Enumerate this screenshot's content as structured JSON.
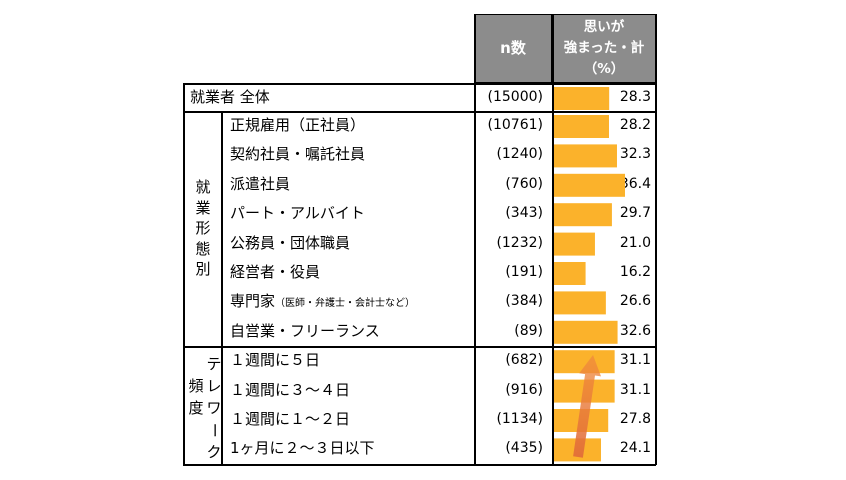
{
  "header": {
    "n_label": "n数",
    "value_label_lines": [
      "思いが",
      "強まった・計",
      "（%）"
    ]
  },
  "groups": {
    "workstyle": [
      "就",
      "業",
      "形",
      "態",
      "別"
    ],
    "frequency_kanji": [
      "頻",
      "度"
    ],
    "frequency_kana": [
      "テ",
      "レ",
      "ワ",
      "ー",
      "ク"
    ]
  },
  "colors": {
    "bar": "#FBB22B",
    "header_bg": "#8C8C8C",
    "arrow": "#E8743B"
  },
  "chart_data": {
    "type": "bar",
    "orientation": "horizontal",
    "xlim": [
      0,
      40
    ],
    "categories": [
      "就業者 全体",
      "正規雇用（正社員）",
      "契約社員・嘱託社員",
      "派遣社員",
      "パート・アルバイト",
      "公務員・団体職員",
      "経営者・役員",
      "専門家",
      "自営業・フリーランス",
      "１週間に５日",
      "１週間に３～４日",
      "１週間に１～２日",
      "1ヶ月に２～３日以下"
    ],
    "category_notes": [
      "",
      "",
      "",
      "",
      "",
      "",
      "",
      "（医師・弁護士・会計士など）",
      "",
      "",
      "",
      "",
      ""
    ],
    "n": [
      "(15000)",
      "(10761)",
      "(1240)",
      "(760)",
      "(343)",
      "(1232)",
      "(191)",
      "(384)",
      "(89)",
      "(682)",
      "(916)",
      "(1134)",
      "(435)"
    ],
    "values": [
      28.3,
      28.2,
      32.3,
      36.4,
      29.7,
      21.0,
      16.2,
      26.6,
      32.6,
      31.1,
      31.1,
      27.8,
      24.1
    ],
    "value_labels": [
      "28.3",
      "28.2",
      "32.3",
      "36.4",
      "29.7",
      "21.0",
      "16.2",
      "26.6",
      "32.6",
      "31.1",
      "31.1",
      "27.8",
      "24.1"
    ]
  }
}
